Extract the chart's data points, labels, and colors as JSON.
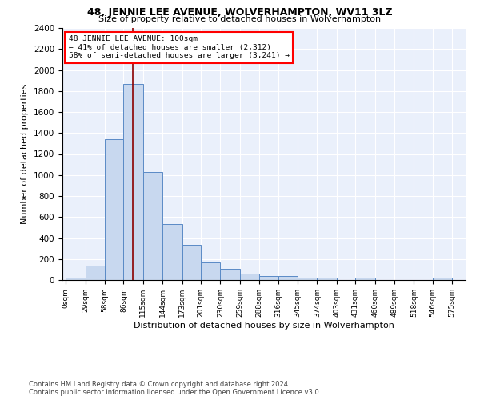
{
  "title1": "48, JENNIE LEE AVENUE, WOLVERHAMPTON, WV11 3LZ",
  "title2": "Size of property relative to detached houses in Wolverhampton",
  "xlabel": "Distribution of detached houses by size in Wolverhampton",
  "ylabel": "Number of detached properties",
  "footnote1": "Contains HM Land Registry data © Crown copyright and database right 2024.",
  "footnote2": "Contains public sector information licensed under the Open Government Licence v3.0.",
  "annotation_line1": "48 JENNIE LEE AVENUE: 100sqm",
  "annotation_line2": "← 41% of detached houses are smaller (2,312)",
  "annotation_line3": "58% of semi-detached houses are larger (3,241) →",
  "bar_edges": [
    0,
    29,
    58,
    86,
    115,
    144,
    173,
    201,
    230,
    259,
    288,
    316,
    345,
    374,
    403,
    431,
    460,
    489,
    518,
    546,
    575
  ],
  "bar_heights": [
    20,
    140,
    1340,
    1870,
    1030,
    530,
    335,
    165,
    105,
    60,
    35,
    35,
    25,
    20,
    0,
    20,
    0,
    0,
    0,
    20
  ],
  "property_size": 100,
  "bar_fill_color": "#c8d8ef",
  "bar_edge_color": "#5a8ac6",
  "vline_color": "#8b0000",
  "background_color": "#eaf0fb",
  "grid_color": "#ffffff",
  "ylim": [
    0,
    2400
  ],
  "yticks": [
    0,
    200,
    400,
    600,
    800,
    1000,
    1200,
    1400,
    1600,
    1800,
    2000,
    2200,
    2400
  ],
  "tick_labels": [
    "0sqm",
    "29sqm",
    "58sqm",
    "86sqm",
    "115sqm",
    "144sqm",
    "173sqm",
    "201sqm",
    "230sqm",
    "259sqm",
    "288sqm",
    "316sqm",
    "345sqm",
    "374sqm",
    "403sqm",
    "431sqm",
    "460sqm",
    "489sqm",
    "518sqm",
    "546sqm",
    "575sqm"
  ]
}
